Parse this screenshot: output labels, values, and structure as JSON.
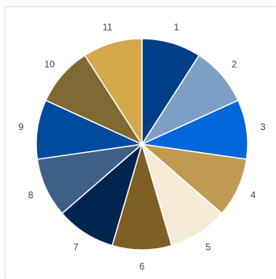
{
  "chart_data": {
    "type": "pie",
    "title": "",
    "categories": [
      "1",
      "2",
      "3",
      "4",
      "5",
      "6",
      "7",
      "8",
      "9",
      "10",
      "11"
    ],
    "values": [
      1,
      1,
      1,
      1,
      1,
      1,
      1,
      1,
      1,
      1,
      1
    ],
    "colors": [
      "#003f87",
      "#7f9fc4",
      "#0066d9",
      "#bf9a52",
      "#f5ead6",
      "#7f5f23",
      "#00254f",
      "#3f5f86",
      "#004a9e",
      "#7f6a33",
      "#d4a84b"
    ],
    "legend": "none",
    "labels_position": "outside"
  }
}
